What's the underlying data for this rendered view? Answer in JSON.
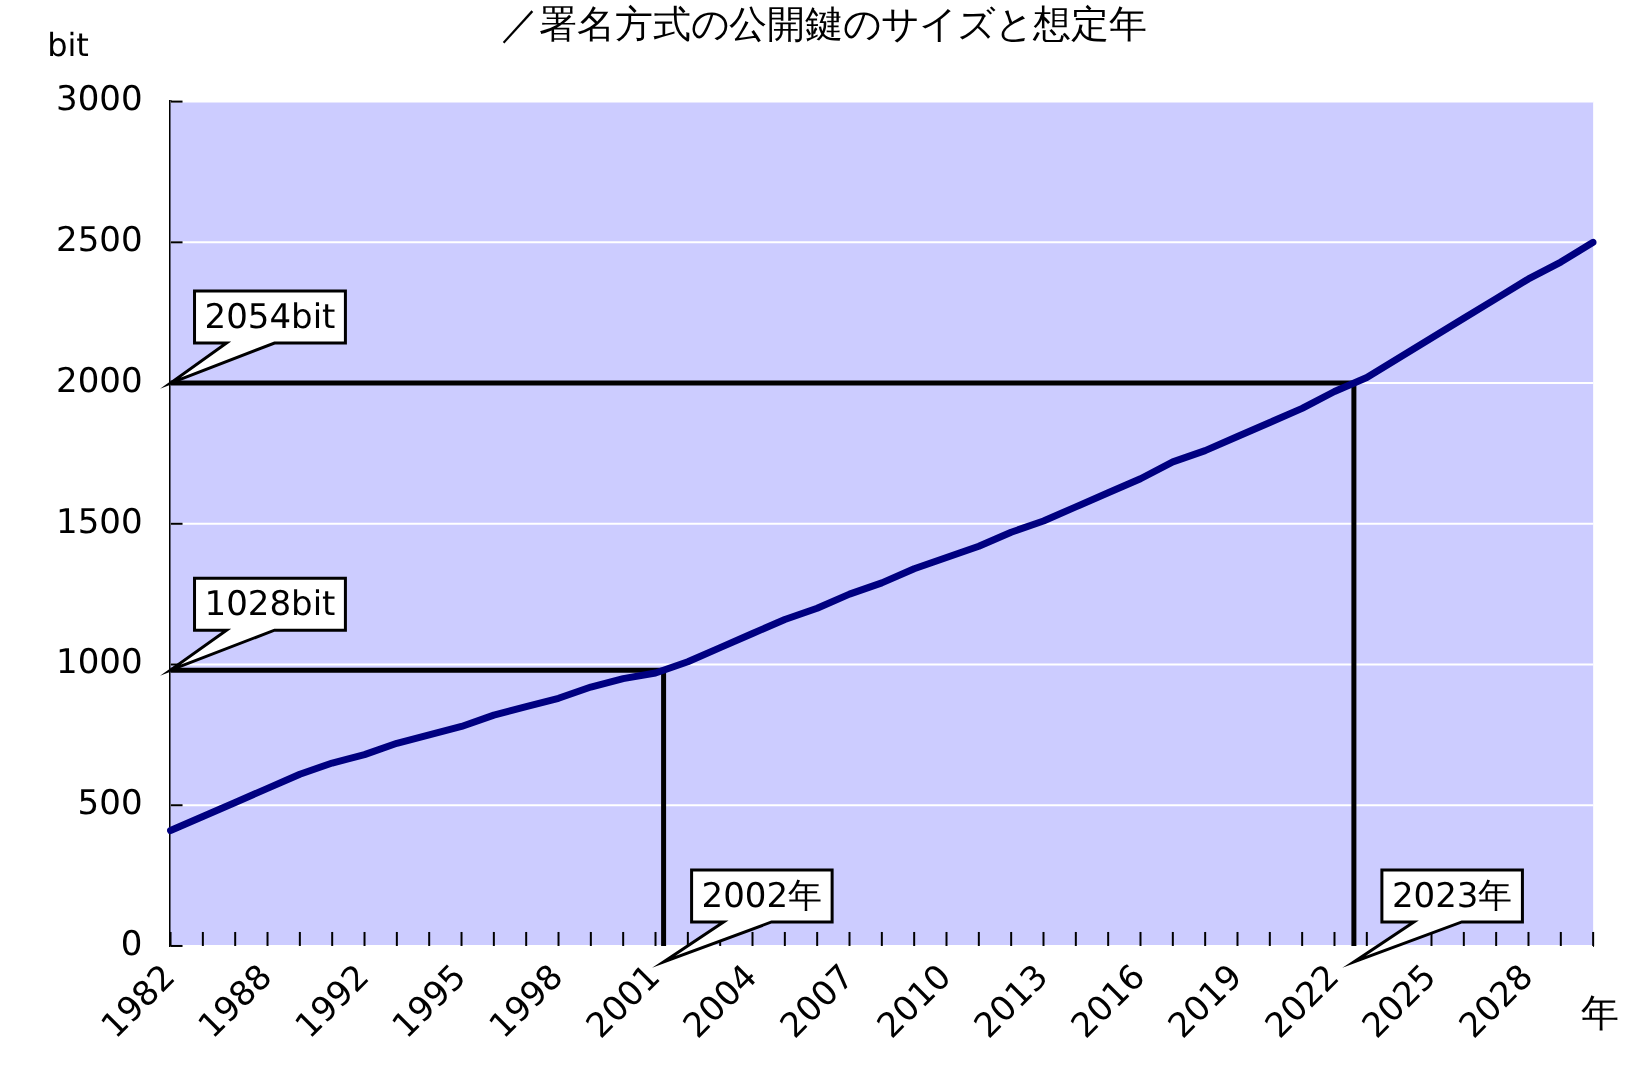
{
  "chart_data": {
    "type": "line",
    "title": "／署名方式の公開鍵のサイズと想定年",
    "ylabel": "bit",
    "xlabel": "年",
    "categories": [
      "1982",
      null,
      null,
      "1988",
      null,
      null,
      "1992",
      null,
      null,
      "1995",
      null,
      null,
      "1998",
      null,
      null,
      "2001",
      null,
      null,
      "2004",
      null,
      null,
      "2007",
      null,
      null,
      "2010",
      null,
      null,
      "2013",
      null,
      null,
      "2016",
      null,
      null,
      "2019",
      null,
      null,
      "2022",
      null,
      null,
      "2025",
      null,
      null,
      "2028",
      null,
      null
    ],
    "series": [
      {
        "color": "#000080",
        "values": [
          410,
          460,
          510,
          560,
          610,
          650,
          680,
          720,
          750,
          780,
          820,
          850,
          880,
          920,
          950,
          970,
          1010,
          1060,
          1110,
          1160,
          1200,
          1250,
          1290,
          1340,
          1380,
          1420,
          1470,
          1510,
          1560,
          1610,
          1660,
          1720,
          1760,
          1810,
          1860,
          1910,
          1970,
          2020,
          2090,
          2160,
          2230,
          2300,
          2370,
          2430,
          2500
        ]
      }
    ],
    "ylim": [
      0,
      3000
    ],
    "yticks": [
      0,
      500,
      1000,
      1500,
      2000,
      2500,
      3000
    ],
    "grid": "y",
    "legend": false,
    "marker": "none",
    "line_style": "solid",
    "ref_lines": [
      {
        "axis": "y",
        "value": 980,
        "label": "1028bit",
        "color": "#000000",
        "line_style": "solid"
      },
      {
        "axis": "y",
        "value": 2000,
        "label": "2054bit",
        "color": "#000000",
        "line_style": "solid"
      }
    ],
    "annotations": [
      "2002年",
      "2023年"
    ]
  }
}
